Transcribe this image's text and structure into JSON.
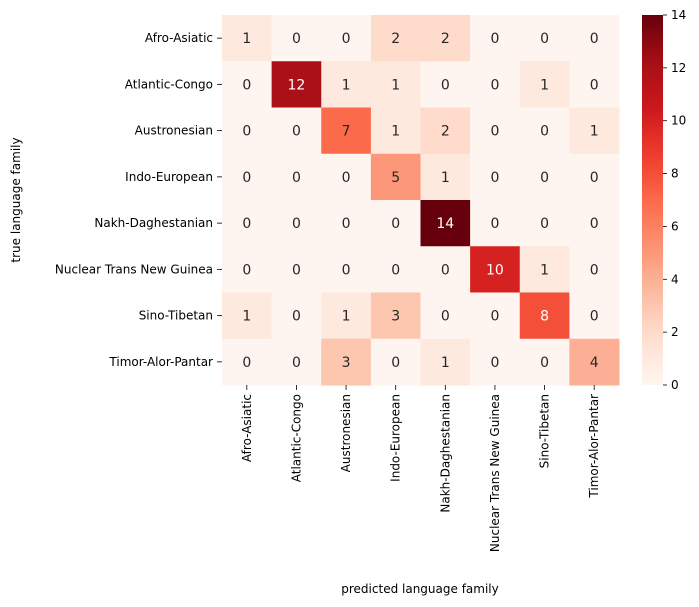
{
  "chart_data": {
    "type": "heatmap",
    "title": "",
    "xlabel": "predicted language family",
    "ylabel": "true language family",
    "x_categories": [
      "Afro-Asiatic",
      "Atlantic-Congo",
      "Austronesian",
      "Indo-European",
      "Nakh-Daghestanian",
      "Nuclear Trans New Guinea",
      "Sino-Tibetan",
      "Timor-Alor-Pantar"
    ],
    "y_categories": [
      "Afro-Asiatic",
      "Atlantic-Congo",
      "Austronesian",
      "Indo-European",
      "Nakh-Daghestanian",
      "Nuclear Trans New Guinea",
      "Sino-Tibetan",
      "Timor-Alor-Pantar"
    ],
    "values": [
      [
        1,
        0,
        0,
        2,
        2,
        0,
        0,
        0
      ],
      [
        0,
        12,
        1,
        1,
        0,
        0,
        1,
        0
      ],
      [
        0,
        0,
        7,
        1,
        2,
        0,
        0,
        1
      ],
      [
        0,
        0,
        0,
        5,
        1,
        0,
        0,
        0
      ],
      [
        0,
        0,
        0,
        0,
        14,
        0,
        0,
        0
      ],
      [
        0,
        0,
        0,
        0,
        0,
        10,
        1,
        0
      ],
      [
        1,
        0,
        1,
        3,
        0,
        0,
        8,
        0
      ],
      [
        0,
        0,
        3,
        0,
        1,
        0,
        0,
        4
      ]
    ],
    "colorscale": "Reds",
    "vmin": 0,
    "vmax": 14,
    "colorbar_ticks": [
      0,
      2,
      4,
      6,
      8,
      10,
      12,
      14
    ],
    "annotations": true,
    "grid": false,
    "legend": "colorbar-right"
  }
}
